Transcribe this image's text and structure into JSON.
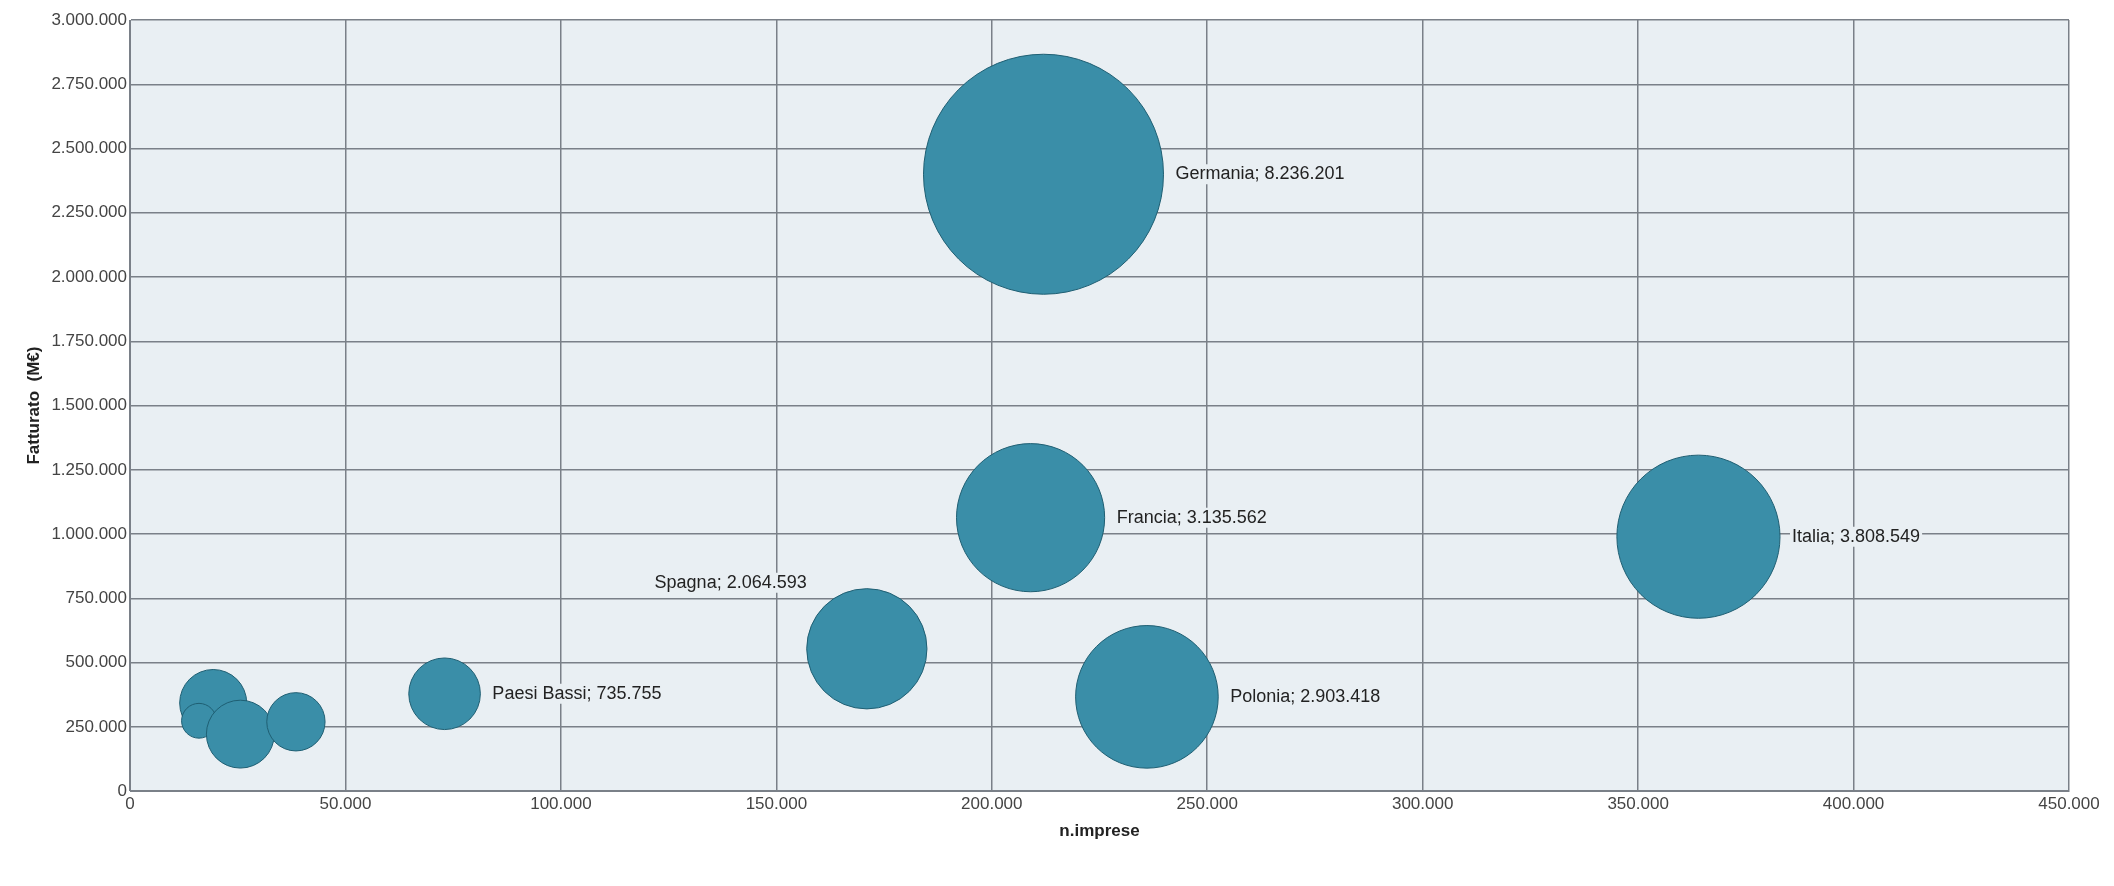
{
  "chart_data": {
    "type": "bubble",
    "xlabel": "n.imprese",
    "ylabel": "Fatturato  (M€)",
    "x": [
      212000,
      209000,
      364000,
      171000,
      236000,
      73000,
      19300,
      16000,
      25600,
      38500
    ],
    "values": [
      2400000,
      1064000,
      990000,
      554000,
      367000,
      379000,
      343000,
      274000,
      222000,
      270000
    ],
    "sizes": [
      1,
      0.381,
      0.462,
      0.251,
      0.353,
      0.089,
      0.078,
      0.021,
      0.08,
      0.059
    ],
    "color": "#3a8ea8",
    "xlim": [
      0,
      450000
    ],
    "xticks": [
      0,
      {
        "value": 50000,
        "label": "50.000"
      },
      {
        "value": 100000,
        "label": "100.000"
      },
      {
        "value": 150000,
        "label": "150.000"
      },
      {
        "value": 200000,
        "label": "200.000"
      },
      {
        "value": 250000,
        "label": "250.000"
      },
      {
        "value": 300000,
        "label": "300.000"
      },
      {
        "value": 350000,
        "label": "350.000"
      },
      {
        "value": 400000,
        "label": "400.000"
      },
      {
        "value": 450000,
        "label": "450.000"
      }
    ],
    "ylim": [
      0,
      3000000
    ],
    "yticks": [
      0,
      {
        "value": 250000,
        "label": "250.000"
      },
      {
        "value": 500000,
        "label": "500.000"
      },
      {
        "value": 750000,
        "label": "750.000"
      },
      {
        "value": 1000000,
        "label": "1.000.000"
      },
      {
        "value": 1250000,
        "label": "1.250.000"
      },
      {
        "value": 1500000,
        "label": "1.500.000"
      },
      {
        "value": 1750000,
        "label": "1.750.000"
      },
      {
        "value": 2000000,
        "label": "2.000.000"
      },
      {
        "value": 2250000,
        "label": "2.250.000"
      },
      {
        "value": 2500000,
        "label": "2.500.000"
      },
      {
        "value": 2750000,
        "label": "2.750.000"
      },
      {
        "value": 3000000,
        "label": "3.000.000"
      }
    ],
    "grid": true,
    "legend": false,
    "annotations": [
      "Germania; 8.236.201",
      "Francia; 3.135.562",
      "Italia; 3.808.549",
      "Spagna; 2.064.593",
      "Polonia; 2.903.418",
      "Paesi Bassi; 735.755"
    ]
  }
}
